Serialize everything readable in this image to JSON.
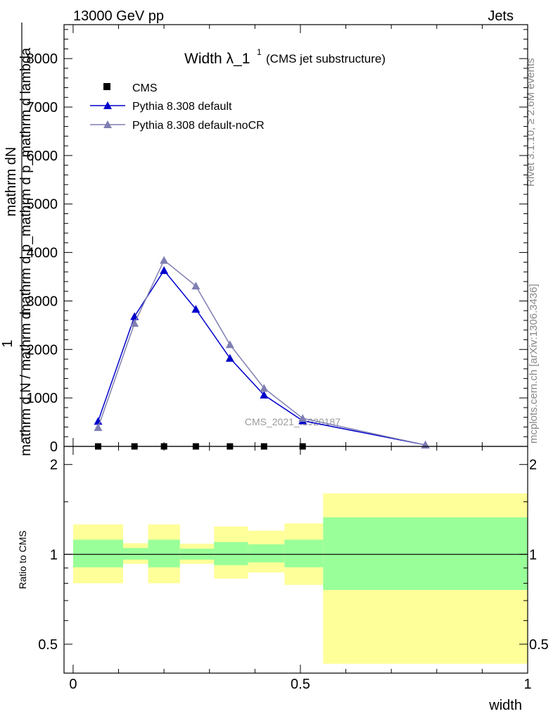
{
  "header": {
    "left": "13000 GeV pp",
    "right": "Jets"
  },
  "side": {
    "rivet": "Rivet 3.1.10, ≥ 2.6M events",
    "mcplots": "mcplots.cern.ch [arXiv:1306.3436]"
  },
  "chart_data": [
    {
      "type": "line",
      "title": "Width λ_1",
      "title_superscript": "1",
      "subtitle": "(CMS jet substructure)",
      "watermark": "CMS_2021_I1920187",
      "ylabel_numerator": "mathrm dN",
      "ylabel_denominator": "mathrm d p_mathrm d p_mathrm d lambda",
      "ylabel_prefix_numerator": "1",
      "ylabel_prefix_denominator": "mathrm d N / mathrm d",
      "xlim": [
        -0.02,
        1.0
      ],
      "ylim": [
        0,
        8700
      ],
      "y_ticks": [
        0,
        1000,
        2000,
        3000,
        4000,
        5000,
        6000,
        7000,
        8000
      ],
      "legend_position": "top-left",
      "series": [
        {
          "name": "CMS",
          "color": "#000000",
          "marker": "square",
          "x": [
            0.055,
            0.135,
            0.2,
            0.27,
            0.345,
            0.42,
            0.505
          ],
          "y": [
            0,
            0,
            0,
            0,
            0,
            0,
            0
          ]
        },
        {
          "name": "Pythia 8.308 default",
          "color": "#0000cc",
          "marker": "triangle",
          "x": [
            0.055,
            0.135,
            0.2,
            0.27,
            0.345,
            0.42,
            0.505,
            0.775
          ],
          "y": [
            520,
            2680,
            3630,
            2830,
            1820,
            1060,
            530,
            30
          ]
        },
        {
          "name": "Pythia 8.308 default-noCR",
          "color": "#7f7fb2",
          "marker": "triangle",
          "x": [
            0.055,
            0.135,
            0.2,
            0.27,
            0.345,
            0.42,
            0.505,
            0.775
          ],
          "y": [
            390,
            2540,
            3840,
            3310,
            2100,
            1200,
            580,
            30
          ]
        }
      ]
    },
    {
      "type": "area",
      "ylabel": "Ratio to CMS",
      "xlabel": "width",
      "xlim": [
        -0.02,
        1.0
      ],
      "ylim": [
        0.4,
        2.3
      ],
      "log_scale": true,
      "x_ticks": [
        0,
        0.5,
        1
      ],
      "x_tick_labels": [
        "0",
        "0.5",
        "1"
      ],
      "y_ticks": [
        0.5,
        1,
        2
      ],
      "y_tick_labels": [
        "0.5",
        "1",
        "2"
      ],
      "reference_line": 1,
      "band_colors": {
        "inner": "#99ff99",
        "outer": "#ffff99"
      },
      "bins": [
        {
          "x": [
            0.0,
            0.11
          ],
          "inner": [
            0.905,
            1.12
          ],
          "outer": [
            0.8,
            1.26
          ]
        },
        {
          "x": [
            0.11,
            0.165
          ],
          "inner": [
            0.96,
            1.05
          ],
          "outer": [
            0.93,
            1.09
          ]
        },
        {
          "x": [
            0.165,
            0.235
          ],
          "inner": [
            0.905,
            1.12
          ],
          "outer": [
            0.8,
            1.26
          ]
        },
        {
          "x": [
            0.235,
            0.31
          ],
          "inner": [
            0.96,
            1.045
          ],
          "outer": [
            0.93,
            1.085
          ]
        },
        {
          "x": [
            0.31,
            0.385
          ],
          "inner": [
            0.92,
            1.1
          ],
          "outer": [
            0.83,
            1.24
          ]
        },
        {
          "x": [
            0.385,
            0.465
          ],
          "inner": [
            0.94,
            1.08
          ],
          "outer": [
            0.87,
            1.2
          ]
        },
        {
          "x": [
            0.465,
            0.55
          ],
          "inner": [
            0.905,
            1.12
          ],
          "outer": [
            0.79,
            1.27
          ]
        },
        {
          "x": [
            0.55,
            1.0
          ],
          "inner": [
            0.76,
            1.33
          ],
          "outer": [
            0.43,
            1.6
          ]
        }
      ]
    }
  ]
}
